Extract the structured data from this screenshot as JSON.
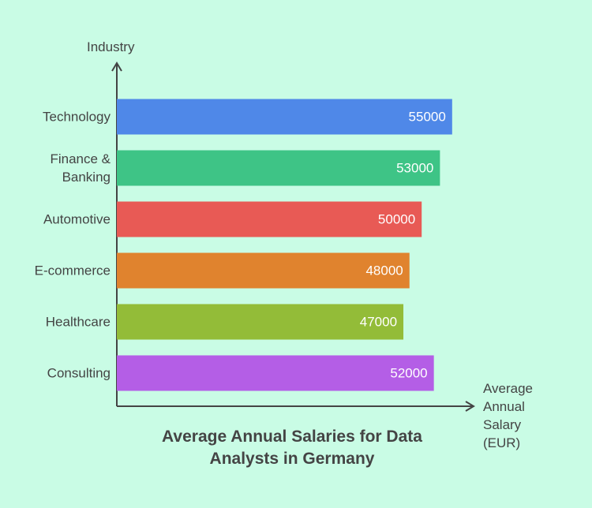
{
  "chart_data": {
    "type": "bar",
    "orientation": "horizontal",
    "title": "Average Annual Salaries for Data Analysts in Germany",
    "x_label": "Average Annual Salary (EUR)",
    "y_label": "Industry",
    "categories": [
      "Technology",
      "Finance & Banking",
      "Automotive",
      "E-commerce",
      "Healthcare",
      "Consulting"
    ],
    "values": [
      55000,
      53000,
      50000,
      48000,
      47000,
      52000
    ],
    "colors": [
      "#4f88e8",
      "#3ec486",
      "#e85a55",
      "#e0832e",
      "#93bc38",
      "#b45ee6"
    ],
    "xlim": [
      0,
      58000
    ]
  }
}
